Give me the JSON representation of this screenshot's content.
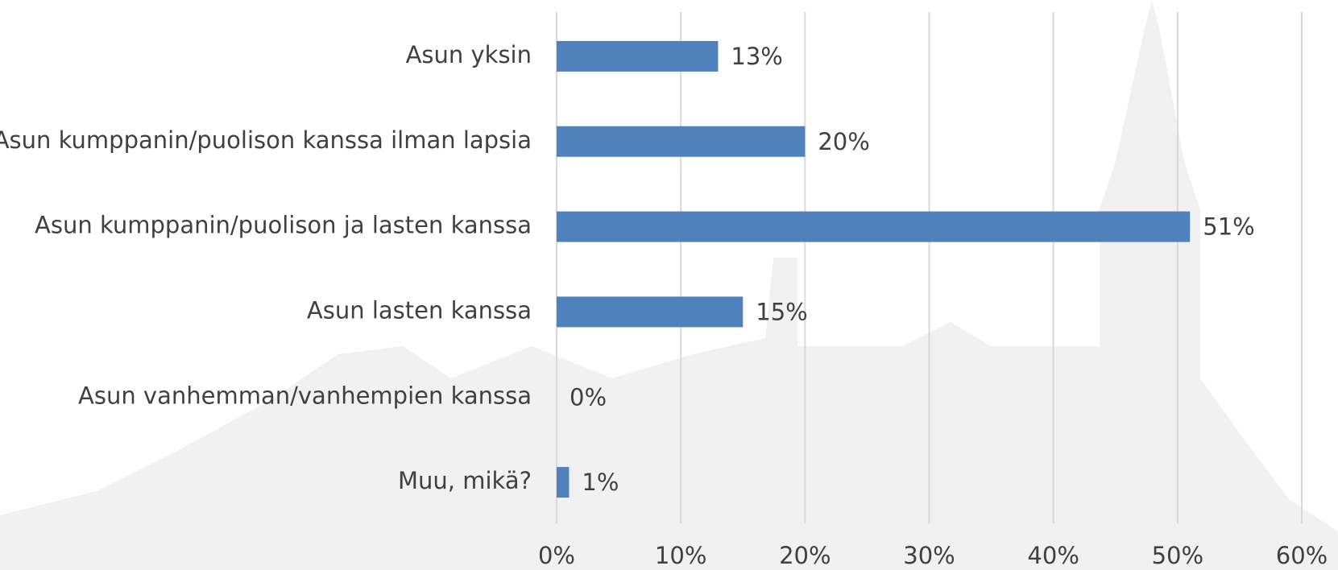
{
  "chart_data": {
    "type": "bar",
    "orientation": "horizontal",
    "categories": [
      "Asun yksin",
      "Asun kumppanin/puolison kanssa ilman lapsia",
      "Asun kumppanin/puolison ja lasten kanssa",
      "Asun lasten kanssa",
      "Asun vanhemman/vanhempien kanssa",
      "Muu, mikä?"
    ],
    "values": [
      13,
      20,
      51,
      15,
      0,
      1
    ],
    "value_labels": [
      "13%",
      "20%",
      "51%",
      "15%",
      "0%",
      "1%"
    ],
    "color": "#4f81bd",
    "xlim": [
      0,
      60
    ],
    "xticks": [
      {
        "value": 0,
        "label": "0%"
      },
      {
        "value": 10,
        "label": "10%"
      },
      {
        "value": 20,
        "label": "20%"
      },
      {
        "value": 30,
        "label": "30%"
      },
      {
        "value": 40,
        "label": "40%"
      },
      {
        "value": 50,
        "label": "50%"
      },
      {
        "value": 60,
        "label": "60%"
      }
    ],
    "grid": true
  }
}
